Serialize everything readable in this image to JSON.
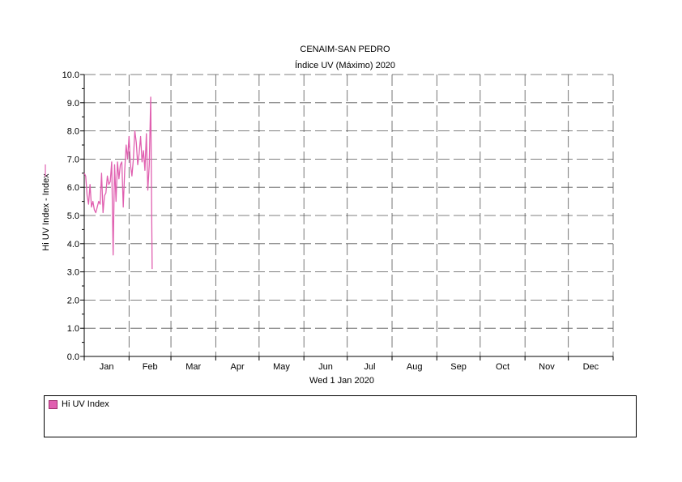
{
  "chart_data": {
    "type": "line",
    "title": "CENAIM-SAN PEDRO",
    "subtitle": "Índice UV (Máximo) 2020",
    "xlabel": "Wed 1 Jan 2020",
    "ylabel": "Hi UV Index - Index",
    "ylim": [
      0,
      10
    ],
    "yticks": [
      "0.0",
      "1.0",
      "2.0",
      "3.0",
      "4.0",
      "5.0",
      "6.0",
      "7.0",
      "8.0",
      "9.0",
      "10.0"
    ],
    "xrange_days": [
      0,
      366
    ],
    "month_labels": [
      "Jan",
      "Feb",
      "Mar",
      "Apr",
      "May",
      "Jun",
      "Jul",
      "Aug",
      "Sep",
      "Oct",
      "Nov",
      "Dec"
    ],
    "grid": true,
    "legend_position": "bottom",
    "series": [
      {
        "name": "Hi UV Index",
        "color": "#e060b0",
        "x": [
          "2020-01-01",
          "2020-01-02",
          "2020-01-03",
          "2020-01-04",
          "2020-01-05",
          "2020-01-06",
          "2020-01-07",
          "2020-01-08",
          "2020-01-09",
          "2020-01-10",
          "2020-01-11",
          "2020-01-12",
          "2020-01-13",
          "2020-01-14",
          "2020-01-15",
          "2020-01-16",
          "2020-01-17",
          "2020-01-18",
          "2020-01-19",
          "2020-01-20",
          "2020-01-21",
          "2020-01-22",
          "2020-01-23",
          "2020-01-24",
          "2020-01-25",
          "2020-01-26",
          "2020-01-27",
          "2020-01-28",
          "2020-01-29",
          "2020-01-30",
          "2020-01-31",
          "2020-02-01",
          "2020-02-02",
          "2020-02-03",
          "2020-02-04",
          "2020-02-05",
          "2020-02-06",
          "2020-02-07",
          "2020-02-08",
          "2020-02-09",
          "2020-02-10",
          "2020-02-11",
          "2020-02-12",
          "2020-02-13",
          "2020-02-14",
          "2020-02-15",
          "2020-02-16",
          "2020-02-17",
          "2020-02-18",
          "2020-02-19",
          "2020-02-20",
          "2020-02-21",
          "2020-02-22",
          "2020-02-23",
          "2020-02-24",
          "2020-02-25"
        ],
        "values": [
          6.5,
          6.4,
          5.7,
          5.4,
          6.1,
          5.3,
          5.5,
          5.2,
          5.1,
          5.3,
          5.5,
          5.4,
          6.5,
          5.1,
          5.7,
          5.8,
          6.4,
          6.1,
          6.2,
          6.9,
          3.6,
          6.8,
          5.5,
          6.9,
          6.3,
          6.8,
          6.9,
          5.3,
          6.6,
          7.5,
          7.0,
          7.8,
          6.8,
          6.4,
          7.0,
          8.0,
          7.6,
          6.8,
          7.2,
          7.8,
          6.9,
          7.3,
          6.6,
          7.9,
          5.9,
          6.8,
          9.2,
          3.1,
          null,
          null,
          null,
          null,
          null,
          null,
          null,
          null
        ]
      }
    ]
  },
  "legend": {
    "items": [
      {
        "label": "Hi UV Index",
        "color": "#e060b0"
      }
    ]
  }
}
